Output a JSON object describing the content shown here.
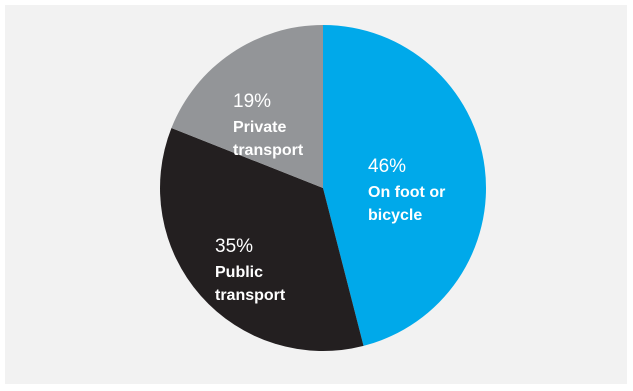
{
  "chart_data": {
    "type": "pie",
    "title": "",
    "slices": [
      {
        "name": "On foot or bicycle",
        "value": 46,
        "pct_label": "46%",
        "label_lines": [
          "On foot or",
          "bicycle"
        ],
        "color": "#00a9ea"
      },
      {
        "name": "Public transport",
        "value": 35,
        "pct_label": "35%",
        "label_lines": [
          "Public",
          "transport"
        ],
        "color": "#231f20"
      },
      {
        "name": "Private transport",
        "value": 19,
        "pct_label": "19%",
        "label_lines": [
          "Private",
          "transport"
        ],
        "color": "#939598"
      }
    ],
    "legend": "none",
    "start_angle": "12 o'clock",
    "direction": "clockwise"
  },
  "colors": {
    "panel_background": "#f2f2f2",
    "label_text": "#ffffff"
  }
}
